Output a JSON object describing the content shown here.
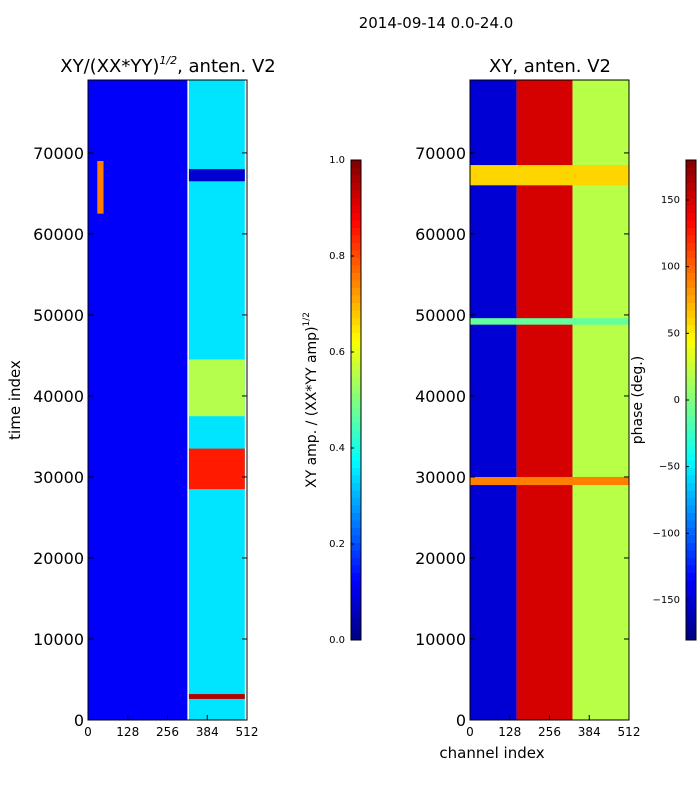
{
  "suptitle": "2014-09-14 0.0-24.0",
  "chart_data": [
    {
      "type": "heatmap",
      "title": "XY/(XX*YY)^{1/2}, anten. V2",
      "title_main": "XY/(XX*YY)",
      "title_sup": "1/2",
      "title_tail": ", anten. V2",
      "xlabel": "",
      "ylabel": "time index",
      "xlim": [
        0,
        512
      ],
      "ylim": [
        0,
        79000
      ],
      "xticks": [
        0,
        128,
        256,
        384,
        512
      ],
      "xtick_labels": [
        "0",
        "128",
        "256",
        "384",
        "512"
      ],
      "yticks": [
        0,
        10000,
        20000,
        30000,
        40000,
        50000,
        60000,
        70000
      ],
      "ytick_labels": [
        "0",
        "10000",
        "20000",
        "30000",
        "40000",
        "50000",
        "60000",
        "70000"
      ],
      "colorbar": {
        "label_main": "XY amp. / (XX*YY amp)",
        "label_sup": "1/2",
        "range": [
          0.0,
          1.0
        ],
        "ticks": [
          0.0,
          0.2,
          0.4,
          0.6,
          0.8,
          1.0
        ],
        "tick_labels": [
          "0.0",
          "0.2",
          "0.4",
          "0.6",
          "0.8",
          "1.0"
        ],
        "colormap": "jet"
      },
      "regions": [
        {
          "x": [
            0,
            320
          ],
          "y": [
            0,
            79000
          ],
          "value": 0.12
        },
        {
          "x": [
            325,
            505
          ],
          "y": [
            0,
            79000
          ],
          "value": 0.35
        },
        {
          "x": [
            325,
            505
          ],
          "y": [
            28500,
            33500
          ],
          "value": 0.85
        },
        {
          "x": [
            325,
            505
          ],
          "y": [
            2600,
            3200
          ],
          "value": 0.95
        },
        {
          "x": [
            325,
            505
          ],
          "y": [
            37500,
            44500
          ],
          "value": 0.55
        },
        {
          "x": [
            325,
            505
          ],
          "y": [
            66500,
            68000
          ],
          "value": 0.08
        },
        {
          "x": [
            30,
            50
          ],
          "y": [
            62500,
            69000
          ],
          "value": 0.75
        }
      ]
    },
    {
      "type": "heatmap",
      "title": "XY, anten. V2",
      "xlabel": "channel index",
      "ylabel": "",
      "xlim": [
        0,
        512
      ],
      "ylim": [
        0,
        79000
      ],
      "xticks": [
        0,
        128,
        256,
        384,
        512
      ],
      "xtick_labels": [
        "0",
        "128",
        "256",
        "384",
        "512"
      ],
      "yticks": [
        0,
        10000,
        20000,
        30000,
        40000,
        50000,
        60000,
        70000
      ],
      "ytick_labels": [
        "0",
        "10000",
        "20000",
        "30000",
        "40000",
        "50000",
        "60000",
        "70000"
      ],
      "colorbar": {
        "label": "phase (deg.)",
        "range": [
          -180,
          180
        ],
        "ticks": [
          -150,
          -100,
          -50,
          0,
          50,
          100,
          150
        ],
        "tick_labels": [
          "−150",
          "−100",
          "−50",
          "0",
          "50",
          "100",
          "150"
        ],
        "colormap": "jet"
      },
      "regions": [
        {
          "x": [
            0,
            150
          ],
          "y": [
            0,
            79000
          ],
          "value": -150
        },
        {
          "x": [
            150,
            330
          ],
          "y": [
            0,
            79000
          ],
          "value": 150
        },
        {
          "x": [
            330,
            512
          ],
          "y": [
            0,
            79000
          ],
          "value": 20
        },
        {
          "x": [
            0,
            512
          ],
          "y": [
            66000,
            68500
          ],
          "value": 60
        },
        {
          "x": [
            0,
            512
          ],
          "y": [
            48800,
            49600
          ],
          "value": -10
        },
        {
          "x": [
            0,
            512
          ],
          "y": [
            29000,
            30000
          ],
          "value": 90
        }
      ]
    }
  ]
}
